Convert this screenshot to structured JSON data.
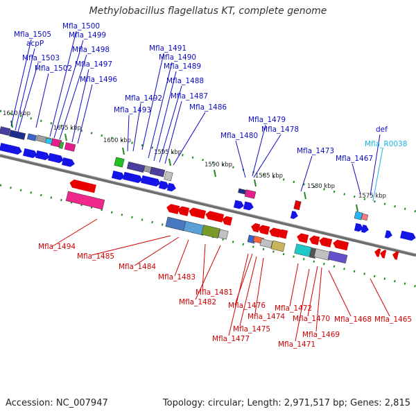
{
  "title": "Methylobacillus flagellatus KT, complete genome",
  "footer": {
    "accession": "Accession: NC_007947",
    "summary": "Topology: circular; Length: 2,971,517 bp; Genes: 2,815"
  },
  "colors": {
    "forward_label": "#0a0ac8",
    "reverse_label": "#d20000",
    "rna_label": "#19b4e6",
    "backbone": "#6e6e6e",
    "tick": "#1e8c1e"
  },
  "scale_labels": [
    "1610 kbp",
    "1605 kbp",
    "1600 kbp",
    "1595 kbp",
    "1590 kbp",
    "1585 kbp",
    "1580 kbp",
    "1575 kbp"
  ],
  "forward_labels": [
    "Mfla_1505",
    "acpP",
    "Mfla_1500",
    "Mfla_1499",
    "Mfla_1503",
    "Mfla_1498",
    "Mfla_1502",
    "Mfla_1497",
    "Mfla_1496",
    "Mfla_1491",
    "Mfla_1490",
    "Mfla_1489",
    "Mfla_1488",
    "Mfla_1492",
    "Mfla_1487",
    "Mfla_1493",
    "Mfla_1486",
    "Mfla_1479",
    "Mfla_1478",
    "Mfla_1480",
    "Mfla_1473",
    "Mfla_1467",
    "def"
  ],
  "rna_labels": [
    "Mfla_R0038"
  ],
  "reverse_labels": [
    "Mfla_1494",
    "Mfla_1485",
    "Mfla_1484",
    "Mfla_1483",
    "Mfla_1481",
    "Mfla_1482",
    "Mfla_1476",
    "Mfla_1472",
    "Mfla_1474",
    "Mfla_1470",
    "Mfla_1468",
    "Mfla_1465",
    "Mfla_1475",
    "Mfla_1469",
    "Mfla_1477",
    "Mfla_1471"
  ]
}
